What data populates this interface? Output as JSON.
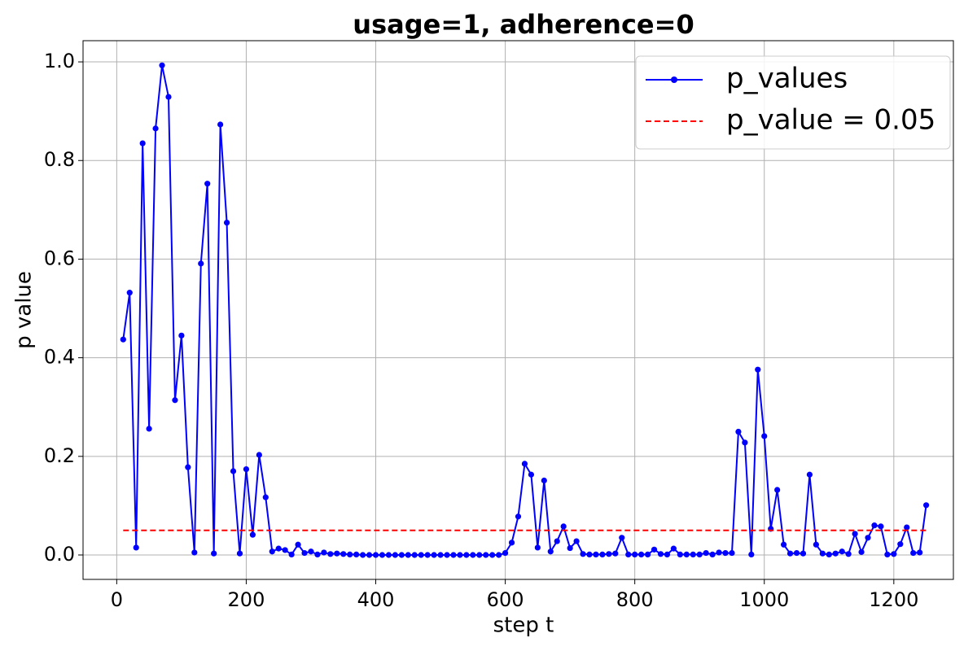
{
  "chart_data": {
    "type": "line",
    "title": "usage=1, adherence=0",
    "x_label": "step t",
    "y_label": "p value",
    "xlim": [
      -52,
      1292
    ],
    "ylim": [
      -0.0495,
      1.043
    ],
    "xticks": [
      0,
      200,
      400,
      600,
      800,
      1000,
      1200
    ],
    "yticks": [
      {
        "value": 0,
        "label": "0.0"
      },
      {
        "value": 0.2,
        "label": "0.2"
      },
      {
        "value": 0.4,
        "label": "0.4"
      },
      {
        "value": 0.6,
        "label": "0.6"
      },
      {
        "value": 0.8,
        "label": "0.8"
      },
      {
        "value": 1,
        "label": "1.0"
      }
    ],
    "grid": true,
    "legend": "upper right",
    "series": [
      {
        "name": "p_values",
        "color": "#0000ff",
        "marker": true,
        "dashed": false,
        "x": [
          10,
          20,
          30,
          40,
          50,
          60,
          70,
          80,
          90,
          100,
          110,
          120,
          130,
          140,
          150,
          160,
          170,
          180,
          190,
          200,
          210,
          220,
          230,
          240,
          250,
          260,
          270,
          280,
          290,
          300,
          310,
          320,
          330,
          340,
          350,
          360,
          370,
          380,
          390,
          400,
          410,
          420,
          430,
          440,
          450,
          460,
          470,
          480,
          490,
          500,
          510,
          520,
          530,
          540,
          550,
          560,
          570,
          580,
          590,
          600,
          610,
          620,
          630,
          640,
          650,
          660,
          670,
          680,
          690,
          700,
          710,
          720,
          730,
          740,
          750,
          760,
          770,
          780,
          790,
          800,
          810,
          820,
          830,
          840,
          850,
          860,
          870,
          880,
          890,
          900,
          910,
          920,
          930,
          940,
          950,
          960,
          970,
          980,
          990,
          1000,
          1010,
          1020,
          1030,
          1040,
          1050,
          1060,
          1070,
          1080,
          1090,
          1100,
          1110,
          1120,
          1130,
          1140,
          1150,
          1160,
          1170,
          1180,
          1190,
          1200,
          1210,
          1220,
          1230,
          1240,
          1250
        ],
        "values": [
          0.437,
          0.532,
          0.015,
          0.835,
          0.256,
          0.865,
          0.993,
          0.929,
          0.314,
          0.445,
          0.178,
          0.005,
          0.591,
          0.753,
          0.003,
          0.873,
          0.674,
          0.17,
          0.003,
          0.174,
          0.041,
          0.203,
          0.117,
          0.007,
          0.013,
          0.01,
          0.001,
          0.021,
          0.004,
          0.007,
          0.001,
          0.005,
          0.002,
          0.003,
          0.002,
          0.001,
          0.001,
          0,
          0,
          0,
          0,
          0,
          0,
          0,
          0,
          0,
          0,
          0,
          0,
          0,
          0,
          0,
          0,
          0,
          0,
          0,
          0,
          0,
          0,
          0.004,
          0.025,
          0.078,
          0.185,
          0.163,
          0.015,
          0.151,
          0.007,
          0.028,
          0.058,
          0.014,
          0.028,
          0.002,
          0.001,
          0.001,
          0.001,
          0.002,
          0.003,
          0.035,
          0.001,
          0.001,
          0.001,
          0.001,
          0.011,
          0.002,
          0.001,
          0.013,
          0.001,
          0.001,
          0.001,
          0.001,
          0.004,
          0.001,
          0.005,
          0.004,
          0.004,
          0.25,
          0.228,
          0.001,
          0.376,
          0.241,
          0.053,
          0.132,
          0.021,
          0.003,
          0.004,
          0.003,
          0.163,
          0.021,
          0.003,
          0.001,
          0.003,
          0.007,
          0.002,
          0.043,
          0.006,
          0.035,
          0.06,
          0.058,
          0.001,
          0.002,
          0.022,
          0.056,
          0.004,
          0.005,
          0.101
        ]
      },
      {
        "name": "p_value = 0.05",
        "color": "#ff0000",
        "marker": false,
        "dashed": true,
        "x": [
          10,
          1250
        ],
        "values": [
          0.05,
          0.05
        ]
      }
    ]
  }
}
